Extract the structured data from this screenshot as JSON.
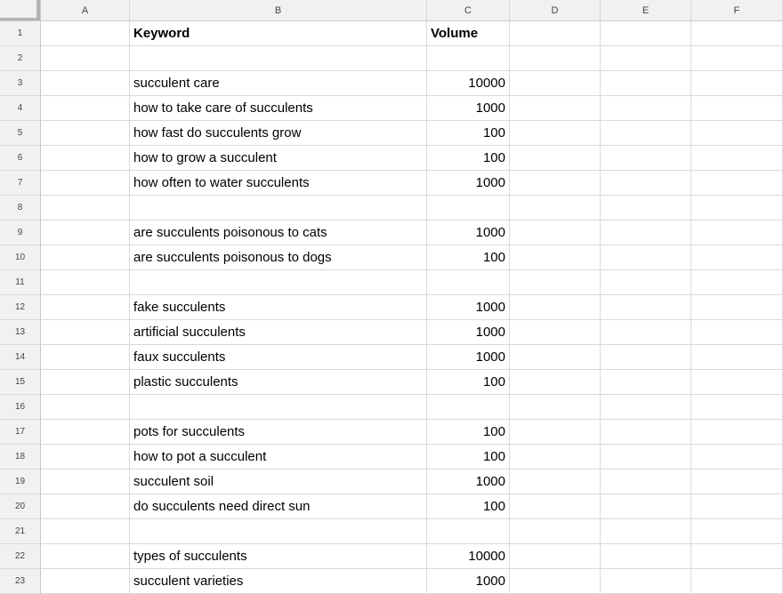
{
  "sheet": {
    "column_headers": [
      "A",
      "B",
      "C",
      "D",
      "E",
      "F"
    ],
    "colors": {
      "header_bg": "#f1f1f1",
      "gridline": "#d9d9d9",
      "header_border": "#c9c9c9",
      "corner_accent": "#b3b3b3",
      "header_text": "#444444",
      "cell_text": "#000000"
    },
    "rows": [
      {
        "n": "1",
        "keyword": "Keyword",
        "volume": "Volume",
        "bold": true
      },
      {
        "n": "2",
        "keyword": "",
        "volume": ""
      },
      {
        "n": "3",
        "keyword": "succulent care",
        "volume": "10000"
      },
      {
        "n": "4",
        "keyword": "how to take care of succulents",
        "volume": "1000"
      },
      {
        "n": "5",
        "keyword": "how fast do succulents grow",
        "volume": "100"
      },
      {
        "n": "6",
        "keyword": "how to grow a succulent",
        "volume": "100"
      },
      {
        "n": "7",
        "keyword": "how often to water succulents",
        "volume": "1000"
      },
      {
        "n": "8",
        "keyword": "",
        "volume": ""
      },
      {
        "n": "9",
        "keyword": "are succulents poisonous to cats",
        "volume": "1000"
      },
      {
        "n": "10",
        "keyword": "are succulents poisonous to dogs",
        "volume": "100"
      },
      {
        "n": "11",
        "keyword": "",
        "volume": ""
      },
      {
        "n": "12",
        "keyword": "fake succulents",
        "volume": "1000"
      },
      {
        "n": "13",
        "keyword": "artificial succulents",
        "volume": "1000"
      },
      {
        "n": "14",
        "keyword": "faux succulents",
        "volume": "1000"
      },
      {
        "n": "15",
        "keyword": "plastic succulents",
        "volume": "100"
      },
      {
        "n": "16",
        "keyword": "",
        "volume": ""
      },
      {
        "n": "17",
        "keyword": "pots for succulents",
        "volume": "100"
      },
      {
        "n": "18",
        "keyword": "how to pot a succulent",
        "volume": "100"
      },
      {
        "n": "19",
        "keyword": "succulent soil",
        "volume": "1000"
      },
      {
        "n": "20",
        "keyword": "do succulents need direct sun",
        "volume": "100"
      },
      {
        "n": "21",
        "keyword": "",
        "volume": ""
      },
      {
        "n": "22",
        "keyword": "types of succulents",
        "volume": "10000"
      },
      {
        "n": "23",
        "keyword": "succulent varieties",
        "volume": "1000"
      }
    ]
  }
}
